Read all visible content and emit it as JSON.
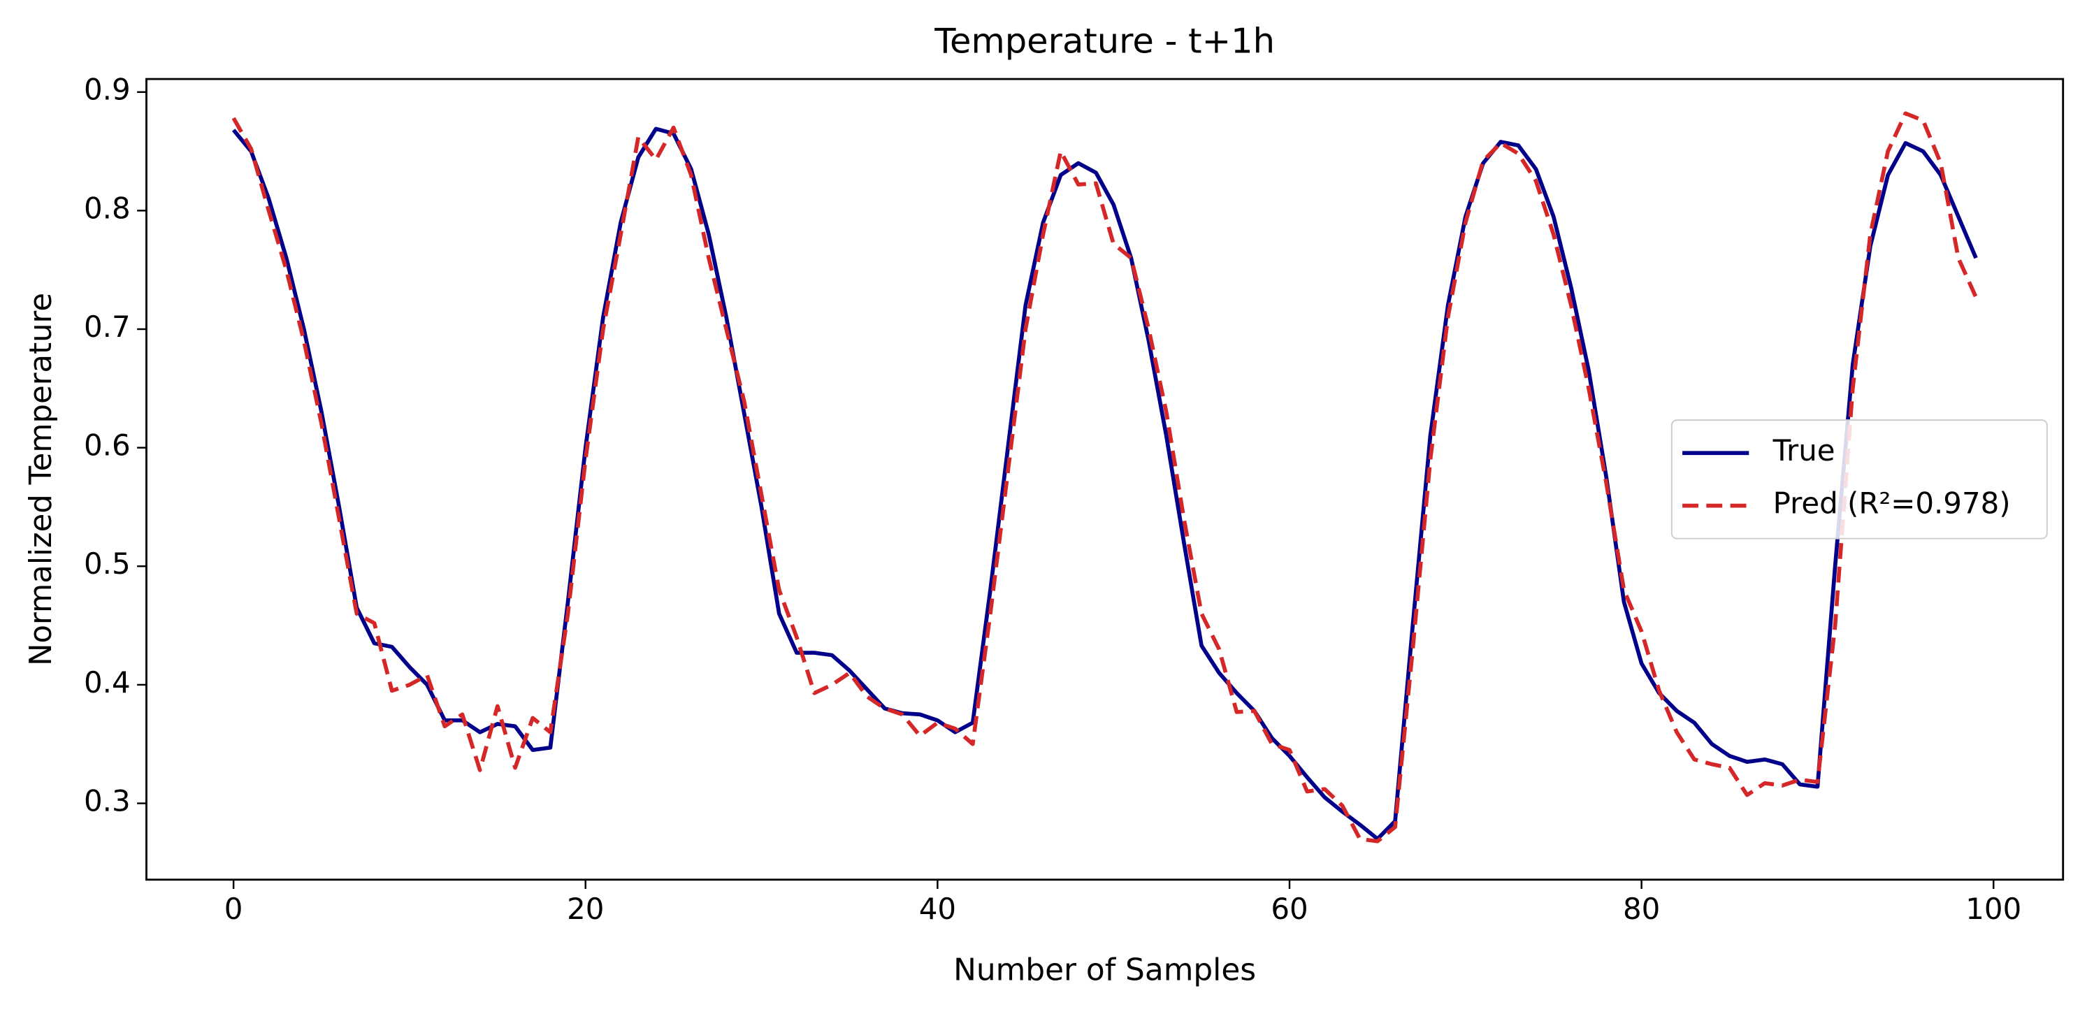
{
  "chart_data": {
    "type": "line",
    "title": "Temperature - t+1h",
    "x_label": "Number of Samples",
    "y_label": "Normalized Temperature",
    "x": [
      0,
      1,
      2,
      3,
      4,
      5,
      6,
      7,
      8,
      9,
      10,
      11,
      12,
      13,
      14,
      15,
      16,
      17,
      18,
      19,
      20,
      21,
      22,
      23,
      24,
      25,
      26,
      27,
      28,
      29,
      30,
      31,
      32,
      33,
      34,
      35,
      36,
      37,
      38,
      39,
      40,
      41,
      42,
      43,
      44,
      45,
      46,
      47,
      48,
      49,
      50,
      51,
      52,
      53,
      54,
      55,
      56,
      57,
      58,
      59,
      60,
      61,
      62,
      63,
      64,
      65,
      66,
      67,
      68,
      69,
      70,
      71,
      72,
      73,
      74,
      75,
      76,
      77,
      78,
      79,
      80,
      81,
      82,
      83,
      84,
      85,
      86,
      87,
      88,
      89,
      90,
      91,
      92,
      93,
      94,
      95,
      96,
      97,
      98,
      99
    ],
    "series": [
      {
        "name": "True",
        "color": "#00008b",
        "dash": false,
        "values": [
          0.868,
          0.85,
          0.81,
          0.76,
          0.7,
          0.63,
          0.55,
          0.465,
          0.435,
          0.432,
          0.415,
          0.4,
          0.37,
          0.37,
          0.36,
          0.367,
          0.365,
          0.345,
          0.347,
          0.47,
          0.6,
          0.71,
          0.79,
          0.845,
          0.869,
          0.865,
          0.835,
          0.78,
          0.71,
          0.63,
          0.55,
          0.46,
          0.427,
          0.427,
          0.425,
          0.412,
          0.396,
          0.38,
          0.376,
          0.375,
          0.37,
          0.36,
          0.368,
          0.48,
          0.6,
          0.72,
          0.79,
          0.83,
          0.84,
          0.832,
          0.805,
          0.76,
          0.69,
          0.61,
          0.52,
          0.433,
          0.41,
          0.393,
          0.378,
          0.355,
          0.34,
          0.322,
          0.305,
          0.293,
          0.282,
          0.27,
          0.285,
          0.45,
          0.61,
          0.72,
          0.795,
          0.84,
          0.858,
          0.855,
          0.835,
          0.795,
          0.735,
          0.665,
          0.575,
          0.47,
          0.418,
          0.393,
          0.378,
          0.368,
          0.35,
          0.34,
          0.335,
          0.337,
          0.333,
          0.316,
          0.314,
          0.5,
          0.67,
          0.77,
          0.83,
          0.857,
          0.85,
          0.83,
          0.795,
          0.76
        ]
      },
      {
        "name": "Pred (R²=0.978)",
        "color": "#d62728",
        "dash": true,
        "values": [
          0.878,
          0.852,
          0.8,
          0.75,
          0.69,
          0.62,
          0.54,
          0.46,
          0.452,
          0.395,
          0.4,
          0.408,
          0.365,
          0.375,
          0.328,
          0.382,
          0.33,
          0.372,
          0.36,
          0.46,
          0.59,
          0.7,
          0.78,
          0.862,
          0.843,
          0.87,
          0.83,
          0.76,
          0.7,
          0.64,
          0.56,
          0.48,
          0.44,
          0.393,
          0.4,
          0.41,
          0.39,
          0.38,
          0.375,
          0.357,
          0.368,
          0.363,
          0.35,
          0.46,
          0.58,
          0.7,
          0.78,
          0.85,
          0.822,
          0.823,
          0.772,
          0.76,
          0.7,
          0.63,
          0.54,
          0.46,
          0.43,
          0.377,
          0.378,
          0.35,
          0.345,
          0.31,
          0.312,
          0.298,
          0.27,
          0.268,
          0.28,
          0.43,
          0.59,
          0.71,
          0.79,
          0.842,
          0.857,
          0.848,
          0.825,
          0.78,
          0.72,
          0.65,
          0.57,
          0.48,
          0.445,
          0.395,
          0.36,
          0.337,
          0.333,
          0.33,
          0.307,
          0.317,
          0.315,
          0.32,
          0.318,
          0.45,
          0.65,
          0.78,
          0.85,
          0.882,
          0.876,
          0.84,
          0.76,
          0.727
        ]
      }
    ],
    "xlim": [
      -4.95,
      103.95
    ],
    "ylim": [
      0.2356,
      0.911
    ],
    "xticks": [
      0,
      20,
      40,
      60,
      80,
      100
    ],
    "yticks": [
      0.3,
      0.4,
      0.5,
      0.6,
      0.7,
      0.8,
      0.9
    ],
    "legend": "center right",
    "grid": false
  }
}
